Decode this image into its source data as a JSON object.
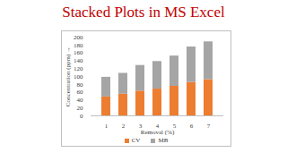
{
  "chart_data": {
    "type": "bar",
    "stacked": true,
    "title": "Stacked Plots in MS Excel",
    "x_label": "Removal (%)",
    "y_label": "Concentration (ppm)",
    "categories": [
      "1",
      "2",
      "3",
      "4",
      "5",
      "6",
      "7"
    ],
    "series": [
      {
        "name": "CV",
        "color": "#ed7d31",
        "values": [
          48,
          55,
          63,
          68,
          75,
          85,
          92
        ]
      },
      {
        "name": "MB",
        "color": "#a5a5a5",
        "values": [
          50,
          53,
          65,
          70,
          77,
          90,
          96
        ]
      }
    ],
    "ylim": [
      0,
      200
    ],
    "yticks": [
      0,
      20,
      40,
      60,
      80,
      100,
      120,
      140,
      160,
      180,
      200
    ],
    "grid": false,
    "legend": "bottom"
  }
}
